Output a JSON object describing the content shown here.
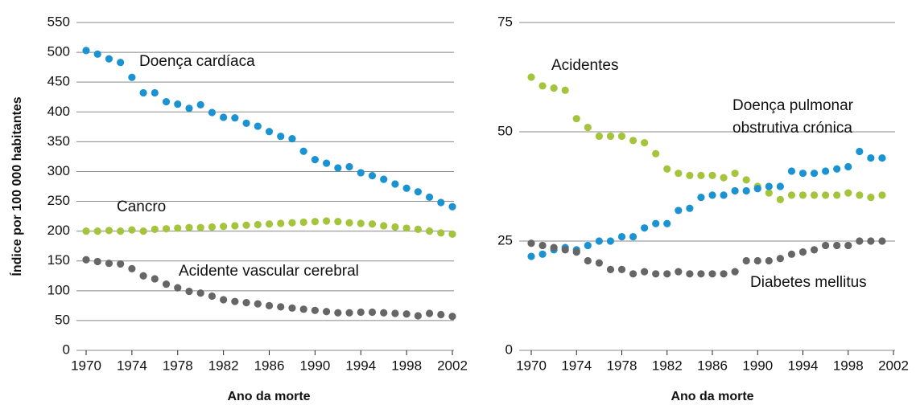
{
  "chart_data": [
    {
      "type": "scatter",
      "y_label": "Índice por 100 000 habitantes",
      "x_label": "Ano da morte",
      "xlim": [
        1970,
        2002
      ],
      "xticks": [
        1970,
        1974,
        1978,
        1982,
        1986,
        1990,
        1994,
        1998,
        2002
      ],
      "ylim": [
        0,
        550
      ],
      "yticks": [
        0,
        50,
        100,
        150,
        200,
        250,
        300,
        350,
        400,
        450,
        500,
        550
      ],
      "grid": true,
      "x": [
        1970,
        1971,
        1972,
        1973,
        1974,
        1975,
        1976,
        1977,
        1978,
        1979,
        1980,
        1981,
        1982,
        1983,
        1984,
        1985,
        1986,
        1987,
        1988,
        1989,
        1990,
        1991,
        1992,
        1993,
        1994,
        1995,
        1996,
        1997,
        1998,
        1999,
        2000,
        2001,
        2002
      ],
      "series": [
        {
          "name": "Doença cardíaca",
          "color": "#1b93d2",
          "values": [
            503,
            497,
            489,
            483,
            458,
            432,
            432,
            417,
            413,
            406,
            412,
            399,
            391,
            390,
            381,
            376,
            367,
            359,
            355,
            334,
            320,
            314,
            306,
            308,
            298,
            293,
            287,
            279,
            272,
            266,
            257,
            248,
            241
          ]
        },
        {
          "name": "Cancro",
          "color": "#a3c43b",
          "values": [
            200,
            200,
            201,
            200,
            202,
            200,
            203,
            204,
            205,
            206,
            206,
            207,
            208,
            209,
            210,
            211,
            212,
            213,
            214,
            215,
            216,
            217,
            216,
            214,
            213,
            212,
            209,
            207,
            205,
            203,
            200,
            197,
            195
          ]
        },
        {
          "name": "Acidente vascular cerebral",
          "color": "#666666",
          "values": [
            152,
            149,
            146,
            145,
            137,
            125,
            120,
            111,
            105,
            99,
            96,
            91,
            85,
            82,
            80,
            78,
            75,
            73,
            71,
            69,
            67,
            65,
            63,
            63,
            64,
            64,
            63,
            62,
            61,
            58,
            62,
            60,
            57
          ]
        }
      ]
    },
    {
      "type": "scatter",
      "x_label": "Ano da morte",
      "xlim": [
        1970,
        2002
      ],
      "xticks": [
        1970,
        1974,
        1978,
        1982,
        1986,
        1990,
        1994,
        1998,
        2002
      ],
      "ylim": [
        0,
        75
      ],
      "yticks": [
        0,
        25,
        50,
        75
      ],
      "grid": true,
      "x": [
        1970,
        1971,
        1972,
        1973,
        1974,
        1975,
        1976,
        1977,
        1978,
        1979,
        1980,
        1981,
        1982,
        1983,
        1984,
        1985,
        1986,
        1987,
        1988,
        1989,
        1990,
        1991,
        1992,
        1993,
        1994,
        1995,
        1996,
        1997,
        1998,
        1999,
        2000,
        2001
      ],
      "series": [
        {
          "name": "Acidentes",
          "color": "#a3c43b",
          "values": [
            62.5,
            60.5,
            60,
            59.5,
            53,
            51,
            49,
            49,
            49,
            48,
            47.5,
            45,
            41.5,
            40.5,
            40,
            40,
            40,
            39.5,
            40.5,
            39,
            37.5,
            36,
            34.5,
            35.5,
            35.5,
            35.5,
            35.5,
            35.5,
            36,
            35.5,
            35,
            35.5
          ]
        },
        {
          "name": "Doença pulmonar obstrutiva crónica",
          "color": "#1b93d2",
          "values": [
            21.5,
            22,
            23,
            23.5,
            23,
            24,
            25,
            25,
            26,
            26,
            28,
            29,
            29,
            32,
            32.5,
            35,
            35.5,
            35.5,
            36.5,
            36.5,
            37,
            37.5,
            37.5,
            41,
            40.5,
            40.5,
            41,
            41.5,
            42,
            45.5,
            44,
            44
          ]
        },
        {
          "name": "Diabetes mellitus",
          "color": "#666666",
          "values": [
            24.5,
            24,
            23.5,
            23,
            22.5,
            20.5,
            20,
            18.5,
            18.5,
            17.5,
            18,
            17.5,
            17.5,
            18,
            17.5,
            17.5,
            17.5,
            17.5,
            18,
            20.5,
            20.5,
            20.5,
            21,
            22,
            22.5,
            23,
            24,
            24,
            24,
            25,
            25,
            25
          ]
        }
      ]
    }
  ]
}
